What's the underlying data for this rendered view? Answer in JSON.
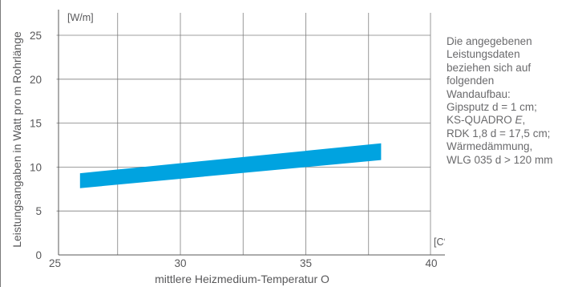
{
  "chart_data": {
    "type": "area",
    "xlabel": "mittlere Heizmedium-Temperatur O",
    "ylabel": "Leistungsangaben in Watt pro m Rohrlänge",
    "x_unit": "[C°]",
    "y_unit": "[W/m]",
    "xlim": [
      25,
      40
    ],
    "ylim": [
      0,
      25
    ],
    "x_ticks": [
      25,
      30,
      35,
      40
    ],
    "y_ticks": [
      0,
      5,
      10,
      15,
      20,
      25
    ],
    "grid": true,
    "series": [
      {
        "color": "#00a3e0",
        "x": [
          26,
          38
        ],
        "lower": [
          7.6,
          10.8
        ],
        "upper": [
          9.3,
          12.7
        ]
      }
    ]
  },
  "note": {
    "lines": [
      "Die angegebenen",
      "Leistungsdaten",
      "beziehen sich auf",
      "folgenden",
      "Wandaufbau:",
      "Gipsputz d = 1 cm;",
      "KS-QUADRO E,",
      "RDK 1,8 d = 17,5 cm;",
      "Wärmedämmung,",
      "WLG 035 d > 120 mm"
    ]
  },
  "colors": {
    "band": "#00a3e0",
    "grid": "#7f7f7f",
    "text": "#58585a"
  }
}
